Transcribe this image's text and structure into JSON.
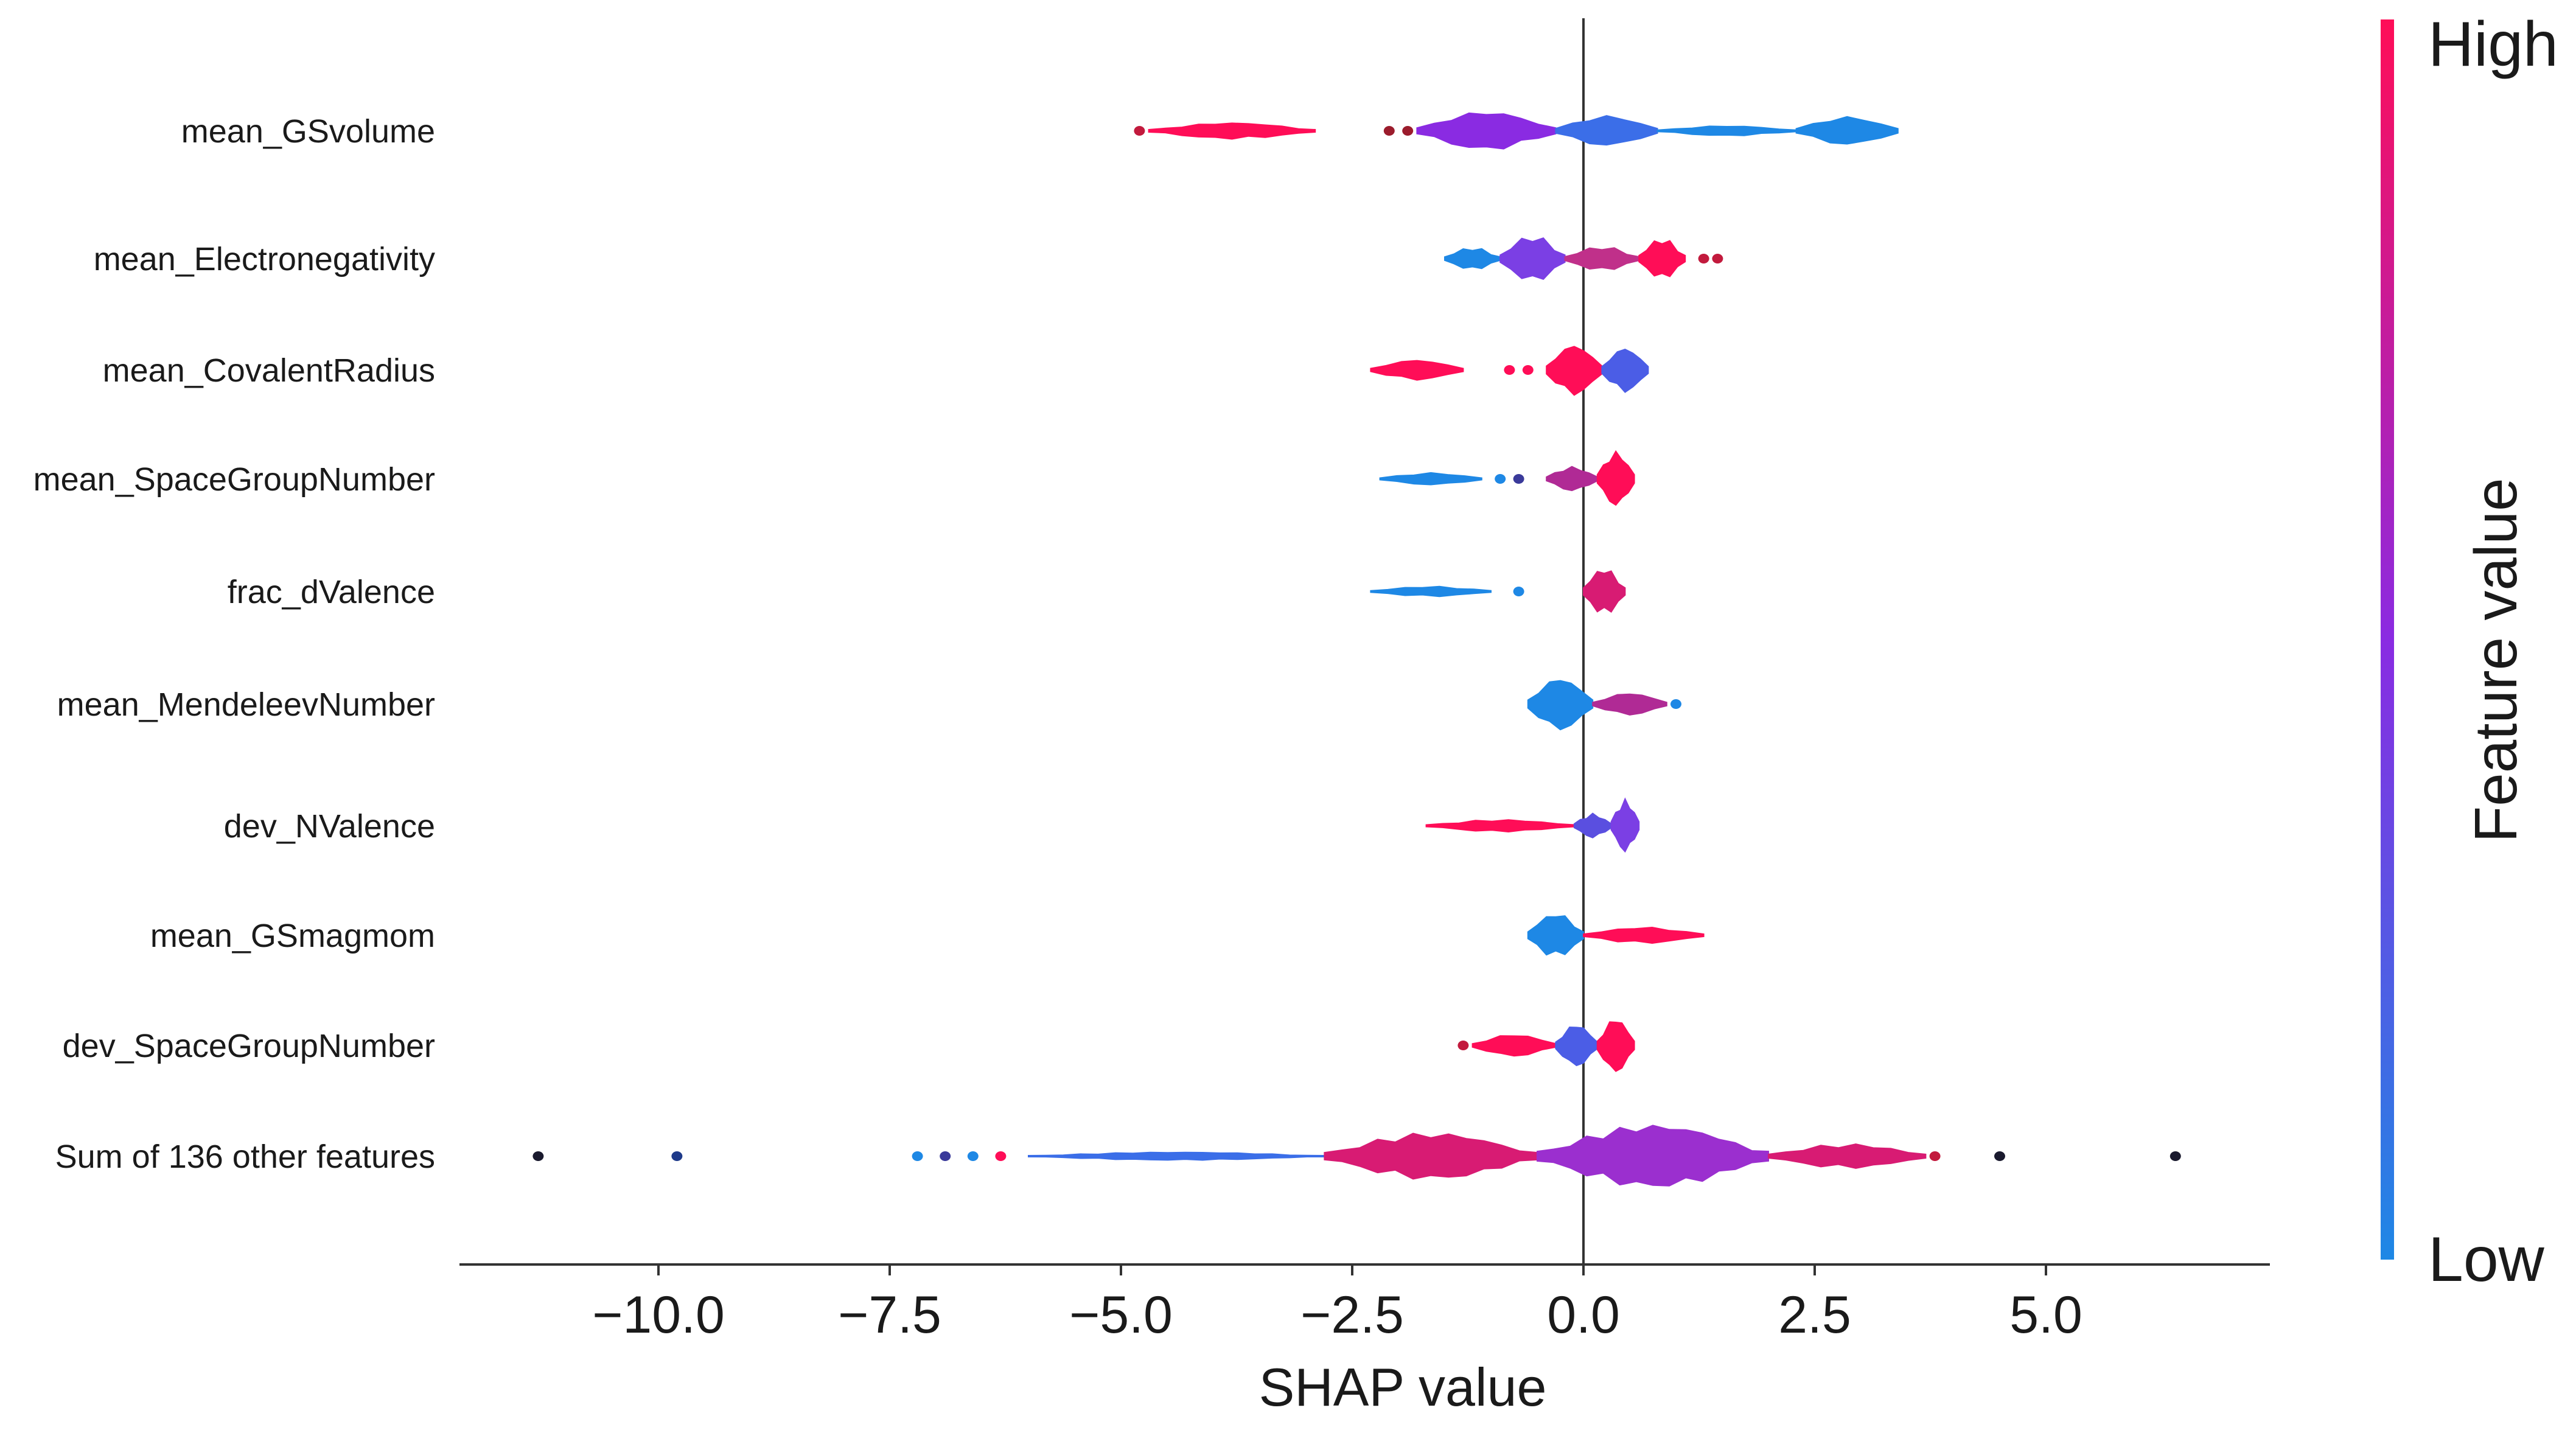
{
  "chart_data": {
    "type": "scatter",
    "subtype": "shap-beeswarm",
    "title": "",
    "xlabel": "SHAP value",
    "ylabel": "",
    "xlim": [
      -12.2,
      7.3
    ],
    "xticks": [
      -10.0,
      -7.5,
      -5.0,
      -2.5,
      0.0,
      2.5,
      5.0
    ],
    "xtick_labels": [
      "−10.0",
      "−7.5",
      "−5.0",
      "−2.5",
      "0.0",
      "2.5",
      "5.0"
    ],
    "colorbar": {
      "title": "Feature value",
      "high_label": "High",
      "low_label": "Low",
      "low_color": "#1e88e5",
      "mid_color": "#8a2be2",
      "high_color": "#ff0d57"
    },
    "features": [
      {
        "name": "mean_GSvolume",
        "segments": [
          {
            "from": -4.7,
            "to": -2.9,
            "color": "#ff0d57",
            "height": 0.16
          },
          {
            "from": -1.8,
            "to": -0.3,
            "color": "#8a2be2",
            "height": 0.38
          },
          {
            "from": -0.3,
            "to": 0.8,
            "color": "#3b6ee8",
            "height": 0.3
          },
          {
            "from": 0.8,
            "to": 2.3,
            "color": "#1e88e5",
            "height": 0.1
          },
          {
            "from": 2.3,
            "to": 3.4,
            "color": "#1e88e5",
            "height": 0.28
          }
        ],
        "points": [
          {
            "x": -4.8,
            "c": "#c21a3d"
          },
          {
            "x": -2.1,
            "c": "#9b1c2c"
          },
          {
            "x": -1.9,
            "c": "#9b1c2c"
          }
        ]
      },
      {
        "name": "mean_Electronegativity",
        "segments": [
          {
            "from": -1.5,
            "to": -0.9,
            "color": "#1e88e5",
            "height": 0.22
          },
          {
            "from": -0.9,
            "to": -0.2,
            "color": "#7b3fe4",
            "height": 0.46
          },
          {
            "from": -0.2,
            "to": 0.6,
            "color": "#c0308a",
            "height": 0.24
          },
          {
            "from": 0.6,
            "to": 1.1,
            "color": "#ff0d57",
            "height": 0.4
          }
        ],
        "points": [
          {
            "x": 1.3,
            "c": "#c21a3d"
          },
          {
            "x": 1.45,
            "c": "#c21a3d"
          }
        ]
      },
      {
        "name": "mean_CovalentRadius",
        "segments": [
          {
            "from": -2.3,
            "to": -1.3,
            "color": "#ff0d57",
            "height": 0.2
          },
          {
            "from": -0.4,
            "to": 0.2,
            "color": "#ff0d57",
            "height": 0.5
          },
          {
            "from": 0.2,
            "to": 0.7,
            "color": "#4b5de6",
            "height": 0.44
          }
        ],
        "points": [
          {
            "x": -0.6,
            "c": "#ff0d57"
          },
          {
            "x": -0.8,
            "c": "#ff0d57"
          }
        ]
      },
      {
        "name": "mean_SpaceGroupNumber",
        "segments": [
          {
            "from": -2.2,
            "to": -1.1,
            "color": "#1e88e5",
            "height": 0.12
          },
          {
            "from": -0.4,
            "to": 0.15,
            "color": "#b02a95",
            "height": 0.24
          },
          {
            "from": 0.15,
            "to": 0.55,
            "color": "#ff0d57",
            "height": 0.54
          }
        ],
        "points": [
          {
            "x": -0.9,
            "c": "#1e88e5"
          },
          {
            "x": -0.7,
            "c": "#3a3a9a"
          }
        ]
      },
      {
        "name": "frac_dValence",
        "segments": [
          {
            "from": -2.3,
            "to": -1.0,
            "color": "#1e88e5",
            "height": 0.1
          },
          {
            "from": 0.0,
            "to": 0.45,
            "color": "#d81b73",
            "height": 0.46
          }
        ],
        "points": [
          {
            "x": -0.7,
            "c": "#1e88e5"
          }
        ]
      },
      {
        "name": "mean_MendeleevNumber",
        "segments": [
          {
            "from": -0.6,
            "to": 0.1,
            "color": "#1e88e5",
            "height": 0.52
          },
          {
            "from": 0.1,
            "to": 0.9,
            "color": "#b02a95",
            "height": 0.22
          }
        ],
        "points": [
          {
            "x": 1.0,
            "c": "#1e88e5"
          }
        ]
      },
      {
        "name": "dev_NValence",
        "segments": [
          {
            "from": -1.7,
            "to": -0.1,
            "color": "#ff0d57",
            "height": 0.12
          },
          {
            "from": -0.1,
            "to": 0.3,
            "color": "#5a4fe0",
            "height": 0.24
          },
          {
            "from": 0.3,
            "to": 0.6,
            "color": "#7b3fe4",
            "height": 0.52
          }
        ],
        "points": []
      },
      {
        "name": "mean_GSmagmom",
        "segments": [
          {
            "from": -0.6,
            "to": 0.0,
            "color": "#1e88e5",
            "height": 0.44
          },
          {
            "from": 0.0,
            "to": 1.3,
            "color": "#ff0d57",
            "height": 0.16
          }
        ],
        "points": []
      },
      {
        "name": "dev_SpaceGroupNumber",
        "segments": [
          {
            "from": -1.2,
            "to": -0.3,
            "color": "#ff0d57",
            "height": 0.22
          },
          {
            "from": -0.3,
            "to": 0.15,
            "color": "#4b5de6",
            "height": 0.42
          },
          {
            "from": 0.15,
            "to": 0.55,
            "color": "#ff0d57",
            "height": 0.54
          }
        ],
        "points": [
          {
            "x": -1.3,
            "c": "#c21a3d"
          }
        ]
      },
      {
        "name": "Sum of 136 other features",
        "segments": [
          {
            "from": -6.0,
            "to": -2.8,
            "color": "#3b6ee8",
            "height": 0.08
          },
          {
            "from": -2.8,
            "to": -0.5,
            "color": "#d81b73",
            "height": 0.46
          },
          {
            "from": -0.5,
            "to": 2.0,
            "color": "#9b2fcf",
            "height": 0.62
          },
          {
            "from": 2.0,
            "to": 3.7,
            "color": "#d81b73",
            "height": 0.24
          }
        ],
        "points": [
          {
            "x": -11.3,
            "c": "#1a1a2e"
          },
          {
            "x": -9.8,
            "c": "#1e3a8a"
          },
          {
            "x": -7.2,
            "c": "#1e88e5"
          },
          {
            "x": -6.9,
            "c": "#3a3a9a"
          },
          {
            "x": -6.6,
            "c": "#1e88e5"
          },
          {
            "x": -6.3,
            "c": "#ff0d57"
          },
          {
            "x": 3.8,
            "c": "#c21a3d"
          },
          {
            "x": 4.5,
            "c": "#1a1a2e"
          },
          {
            "x": 6.4,
            "c": "#1a1a2e"
          }
        ]
      }
    ]
  }
}
